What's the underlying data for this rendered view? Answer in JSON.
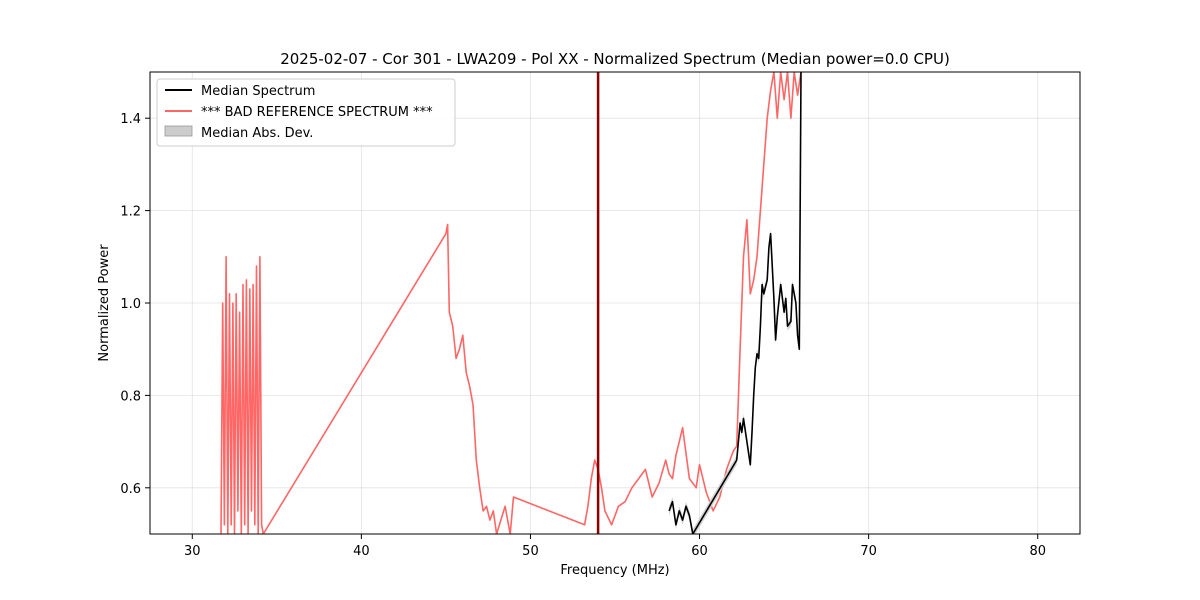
{
  "chart_data": {
    "type": "line",
    "title": "2025-02-07 - Cor 301 - LWA209 - Pol XX - Normalized Spectrum (Median power=0.0 CPU)",
    "xlabel": "Frequency (MHz)",
    "ylabel": "Normalized Power",
    "xlim": [
      27.5,
      82.5
    ],
    "ylim": [
      0.5,
      1.5
    ],
    "x_ticks": [
      "30",
      "40",
      "50",
      "60",
      "70",
      "80"
    ],
    "y_ticks": [
      "0.6",
      "0.8",
      "1.0",
      "1.2",
      "1.4"
    ],
    "x_tick_values": [
      30,
      40,
      50,
      60,
      70,
      80
    ],
    "y_tick_values": [
      0.6,
      0.8,
      1.0,
      1.2,
      1.4
    ],
    "grid": true,
    "legend_position": "top-left",
    "vertical_marker": {
      "x": 54.0,
      "color": "#8b0000"
    },
    "series": [
      {
        "name": "Median Spectrum",
        "color": "#000000",
        "x": [
          58.2,
          58.4,
          58.6,
          58.8,
          59.0,
          59.2,
          59.4,
          59.6,
          62.2,
          62.3,
          62.4,
          62.5,
          62.6,
          62.8,
          63.0,
          63.1,
          63.2,
          63.3,
          63.4,
          63.5,
          63.6,
          63.7,
          63.8,
          64.0,
          64.1,
          64.2,
          64.4,
          64.5,
          64.6,
          64.8,
          65.0,
          65.1,
          65.2,
          65.4,
          65.5,
          65.6,
          65.7,
          65.8,
          65.9,
          66.0
        ],
        "values": [
          0.55,
          0.57,
          0.52,
          0.55,
          0.53,
          0.56,
          0.54,
          0.5,
          0.66,
          0.7,
          0.74,
          0.72,
          0.75,
          0.7,
          0.65,
          0.72,
          0.8,
          0.86,
          0.89,
          0.88,
          0.95,
          1.04,
          1.02,
          1.05,
          1.12,
          1.15,
          1.01,
          0.92,
          0.97,
          1.04,
          0.98,
          1.01,
          0.95,
          0.96,
          1.04,
          1.02,
          1.0,
          0.93,
          0.9,
          1.5
        ]
      },
      {
        "name": "*** BAD REFERENCE SPECTRUM ***",
        "color": "#ff6666",
        "x": [
          31.7,
          31.8,
          31.9,
          32.0,
          32.1,
          32.2,
          32.3,
          32.4,
          32.5,
          32.6,
          32.7,
          32.8,
          32.9,
          33.0,
          33.1,
          33.2,
          33.3,
          33.4,
          33.5,
          33.6,
          33.7,
          33.8,
          33.9,
          34.0,
          34.1,
          34.2,
          45.0,
          45.1,
          45.2,
          45.4,
          45.6,
          45.8,
          46.0,
          46.2,
          46.4,
          46.6,
          46.8,
          47.0,
          47.2,
          47.4,
          47.6,
          47.8,
          48.0,
          48.5,
          48.8,
          49.0,
          53.2,
          53.4,
          53.6,
          53.8,
          54.0,
          54.2,
          54.4,
          54.8,
          55.2,
          55.6,
          56.0,
          56.4,
          56.8,
          57.2,
          57.6,
          58.0,
          58.2,
          58.4,
          58.6,
          58.8,
          59.0,
          59.4,
          59.8,
          60.0,
          60.4,
          60.8,
          61.2,
          61.6,
          62.0,
          62.2,
          62.4,
          62.6,
          62.8,
          63.0,
          63.2,
          63.4,
          63.6,
          63.8,
          64.0,
          64.2,
          64.4,
          64.6,
          64.8,
          65.0,
          65.2,
          65.4,
          65.6,
          65.8,
          66.0
        ],
        "values": [
          0.5,
          1.0,
          0.52,
          1.1,
          0.5,
          1.02,
          0.52,
          1.0,
          0.5,
          1.02,
          0.55,
          0.98,
          0.5,
          1.04,
          0.52,
          1.05,
          0.5,
          1.03,
          0.55,
          1.04,
          0.52,
          1.08,
          0.5,
          1.1,
          0.52,
          0.5,
          1.15,
          1.17,
          0.98,
          0.95,
          0.88,
          0.9,
          0.93,
          0.85,
          0.82,
          0.78,
          0.66,
          0.6,
          0.55,
          0.56,
          0.53,
          0.55,
          0.5,
          0.56,
          0.5,
          0.58,
          0.52,
          0.56,
          0.62,
          0.66,
          0.64,
          0.6,
          0.55,
          0.52,
          0.56,
          0.57,
          0.6,
          0.62,
          0.64,
          0.58,
          0.61,
          0.66,
          0.63,
          0.62,
          0.67,
          0.7,
          0.73,
          0.62,
          0.6,
          0.65,
          0.59,
          0.55,
          0.58,
          0.64,
          0.68,
          0.69,
          0.9,
          1.1,
          1.18,
          1.02,
          1.05,
          1.1,
          1.2,
          1.3,
          1.4,
          1.46,
          1.5,
          1.4,
          1.5,
          1.44,
          1.5,
          1.4,
          1.5,
          1.45,
          1.5
        ]
      }
    ],
    "mad_band": {
      "name": "Median Abs. Dev.",
      "color": "#cccccc"
    }
  }
}
